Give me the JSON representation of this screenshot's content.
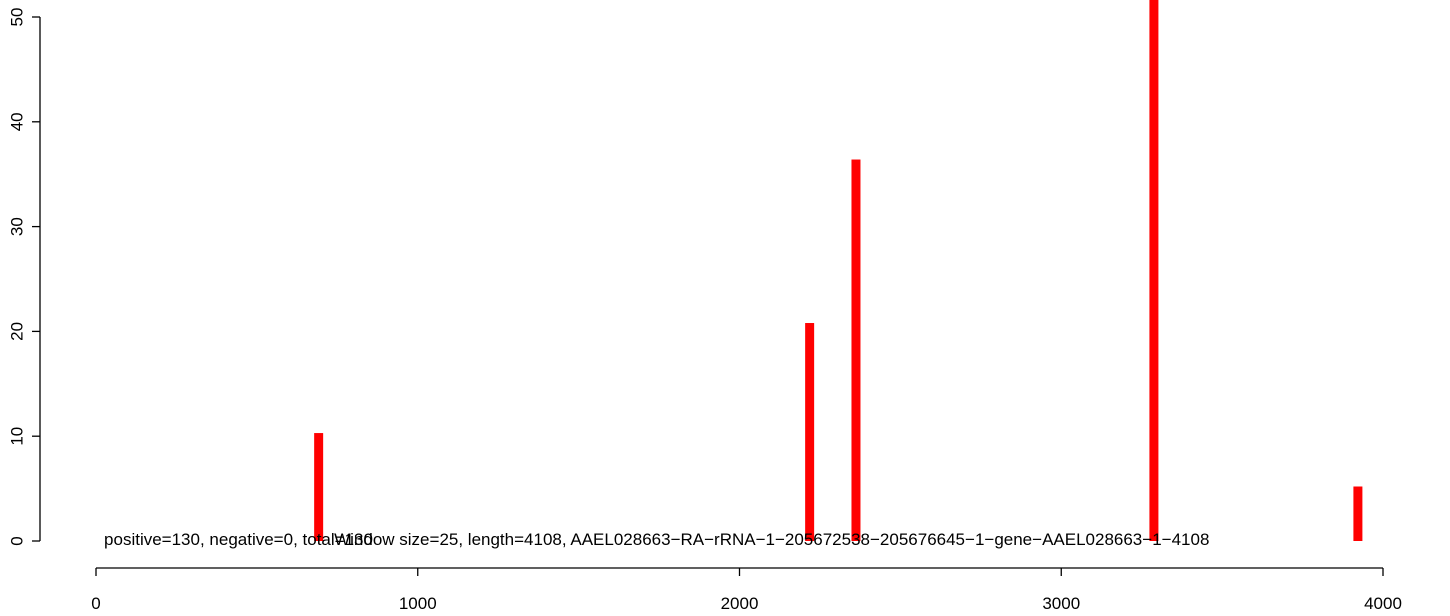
{
  "chart_data": {
    "type": "bar",
    "title": "",
    "xlabel": "",
    "ylabel": "",
    "xlim": [
      0,
      4108
    ],
    "ylim": [
      0,
      52
    ],
    "x_ticks": [
      0,
      1000,
      2000,
      3000,
      4000
    ],
    "y_ticks": [
      0,
      10,
      20,
      30,
      40,
      50
    ],
    "grid": false,
    "bar_color": "#ff0000",
    "series": [
      {
        "x": [
          692,
          2218,
          2362,
          3288,
          3922
        ],
        "values": [
          10.3,
          20.8,
          36.4,
          52,
          5.2
        ]
      }
    ],
    "annotations": [
      {
        "text": "positive=130, negative=0, total=130",
        "x": 25
      },
      {
        "text": "Window size=25, length=4108, AAEL028663−RA−rRNA−1−205672538−205676645−1−gene−AAEL028663−1−4108",
        "x": 740
      }
    ]
  }
}
